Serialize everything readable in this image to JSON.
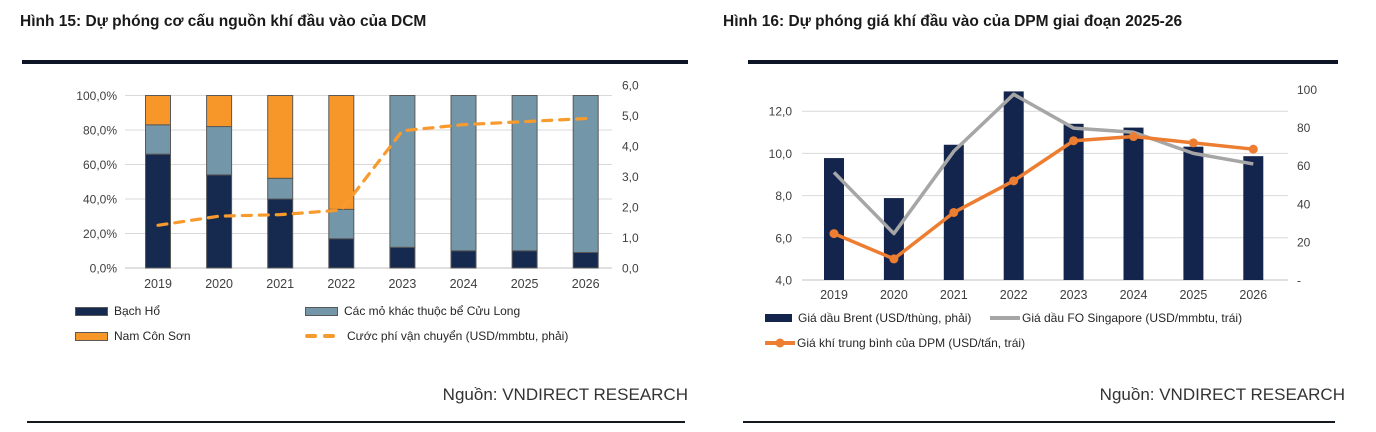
{
  "source_credit": "Nguồn: VNDIRECT RESEARCH",
  "colors": {
    "navy": "#16294E",
    "steel_blue": "#7396A9",
    "orange_bar": "#F79729",
    "orange_dash": "#F89B2E",
    "excel_orange": "#ED7D31",
    "gray_line": "#A6A6A6",
    "gridline": "#D9D9D9",
    "axis_text": "#3F3F3F",
    "rule_dark": "#0D1526"
  },
  "charts": [
    {
      "title": "Hình 15: Dự phóng cơ cấu nguồn khí đầu vào của DCM",
      "source": "Nguồn: VNDIRECT RESEARCH",
      "chart_data": {
        "type": "combo-stacked-bar-line",
        "categories": [
          "2019",
          "2020",
          "2021",
          "2022",
          "2023",
          "2024",
          "2025",
          "2026"
        ],
        "series": [
          {
            "name": "Bạch Hổ",
            "type": "bar",
            "axis": "left",
            "color": "#16294E",
            "values": [
              66,
              54,
              40,
              17,
              12,
              10,
              10,
              9
            ]
          },
          {
            "name": "Các mỏ khác thuộc bể Cửu Long",
            "type": "bar",
            "axis": "left",
            "color": "#7396A9",
            "values": [
              17,
              28,
              12,
              17,
              88,
              90,
              90,
              91
            ]
          },
          {
            "name": "Nam Côn Sơn",
            "type": "bar",
            "axis": "left",
            "color": "#F79729",
            "values": [
              17,
              18,
              48,
              66,
              0,
              0,
              0,
              0
            ]
          },
          {
            "name": "Cước phí vận chuyển (USD/mmbtu, phải)",
            "type": "dashed-line",
            "axis": "right",
            "color": "#F89B2E",
            "values": [
              1.4,
              1.7,
              1.75,
              1.9,
              4.5,
              4.7,
              4.8,
              4.9
            ]
          }
        ],
        "left_axis": {
          "unit": "%",
          "min": 0,
          "max": 100,
          "ticks": [
            "0,0%",
            "20,0%",
            "40,0%",
            "60,0%",
            "80,0%",
            "100,0%"
          ]
        },
        "right_axis": {
          "unit": "USD/mmbtu",
          "min": 0,
          "max": 6,
          "ticks": [
            "0,0",
            "1,0",
            "2,0",
            "3,0",
            "4,0",
            "5,0",
            "6,0"
          ]
        },
        "grid": true,
        "legend_position": "bottom"
      }
    },
    {
      "title": "Hình 16: Dự phóng giá khí đầu vào của DPM giai đoạn 2025-26",
      "source": "Nguồn: VNDIRECT RESEARCH",
      "chart_data": {
        "type": "combo-bar-line",
        "categories": [
          "2019",
          "2020",
          "2021",
          "2022",
          "2023",
          "2024",
          "2025",
          "2026"
        ],
        "series": [
          {
            "name": "Giá dầu Brent (USD/thùng, phải)",
            "type": "bar",
            "axis": "right",
            "color": "#13254C",
            "values": [
              64,
              43,
              71,
              99,
              82,
              80,
              70,
              65
            ]
          },
          {
            "name": "Giá dầu FO Singapore (USD/mmbtu, trái)",
            "type": "line",
            "axis": "left",
            "color": "#A6A6A6",
            "values": [
              9.1,
              6.2,
              10.1,
              12.8,
              11.2,
              11.0,
              10.0,
              9.5
            ]
          },
          {
            "name": "Giá khí trung bình của DPM (USD/tấn, trái)",
            "type": "line-marker",
            "axis": "left",
            "color": "#ED7D31",
            "values": [
              6.2,
              5.0,
              7.2,
              8.7,
              10.6,
              10.8,
              10.5,
              10.2
            ]
          }
        ],
        "left_axis": {
          "min": 4,
          "max": 13,
          "ticks": [
            "4,0",
            "6,0",
            "8,0",
            "10,0",
            "12,0"
          ]
        },
        "right_axis": {
          "min": 0,
          "max": 100,
          "ticks": [
            "-",
            "20",
            "40",
            "60",
            "80",
            "100"
          ]
        },
        "grid": true,
        "legend_position": "bottom"
      }
    }
  ]
}
